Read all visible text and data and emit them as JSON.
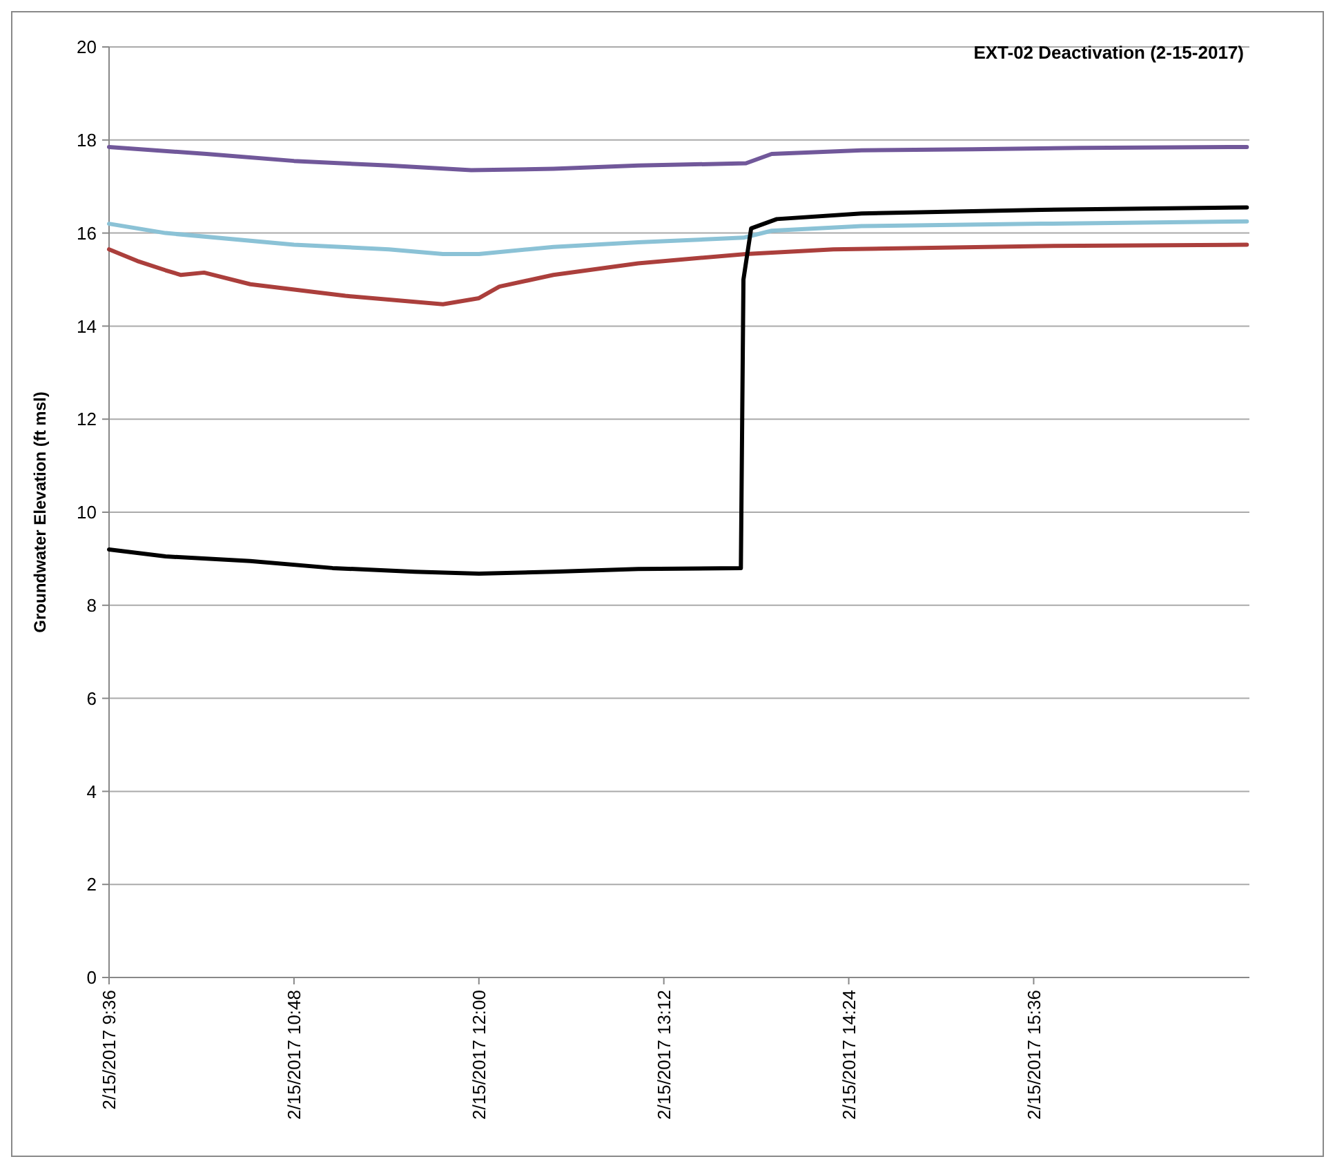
{
  "chart_data": {
    "type": "line",
    "title": "EXT-02 Deactivation (2-15-2017)",
    "ylabel": "Groundwater Elevation (ft msl)",
    "xlim": [
      "2017-02-15T09:36",
      "2017-02-15T17:00"
    ],
    "xticks": [
      {
        "value": "2017-02-15T09:36",
        "label": "2/15/2017 9:36"
      },
      {
        "value": "2017-02-15T10:48",
        "label": "2/15/2017 10:48"
      },
      {
        "value": "2017-02-15T12:00",
        "label": "2/15/2017 12:00"
      },
      {
        "value": "2017-02-15T13:12",
        "label": "2/15/2017 13:12"
      },
      {
        "value": "2017-02-15T14:24",
        "label": "2/15/2017 14:24"
      },
      {
        "value": "2017-02-15T15:36",
        "label": "2/15/2017 15:36"
      }
    ],
    "ylim": [
      0,
      20
    ],
    "yticks": [
      0,
      2,
      4,
      6,
      8,
      10,
      12,
      14,
      16,
      18,
      20
    ],
    "grid": "y",
    "marker": "none",
    "line_style": "solid",
    "series": [
      {
        "color": "#71589a",
        "x": [
          "2017-02-15T09:36",
          "2017-02-15T10:14",
          "2017-02-15T10:48",
          "2017-02-15T11:25",
          "2017-02-15T11:57",
          "2017-02-15T12:29",
          "2017-02-15T13:02",
          "2017-02-15T13:44",
          "2017-02-15T13:54",
          "2017-02-15T14:29",
          "2017-02-15T15:12",
          "2017-02-15T15:54",
          "2017-02-15T16:59"
        ],
        "values": [
          17.85,
          17.7,
          17.55,
          17.45,
          17.35,
          17.38,
          17.45,
          17.5,
          17.7,
          17.78,
          17.8,
          17.83,
          17.85
        ]
      },
      {
        "color": "#8bc2d6",
        "x": [
          "2017-02-15T09:36",
          "2017-02-15T09:58",
          "2017-02-15T10:48",
          "2017-02-15T11:25",
          "2017-02-15T11:46",
          "2017-02-15T12:00",
          "2017-02-15T12:29",
          "2017-02-15T13:02",
          "2017-02-15T13:43",
          "2017-02-15T13:54",
          "2017-02-15T14:29",
          "2017-02-15T15:39",
          "2017-02-15T16:59"
        ],
        "values": [
          16.2,
          16.0,
          15.75,
          15.65,
          15.55,
          15.55,
          15.7,
          15.8,
          15.9,
          16.05,
          16.15,
          16.2,
          16.25
        ]
      },
      {
        "color": "#ab3f3c",
        "x": [
          "2017-02-15T09:36",
          "2017-02-15T09:47",
          "2017-02-15T09:58",
          "2017-02-15T10:04",
          "2017-02-15T10:13",
          "2017-02-15T10:31",
          "2017-02-15T11:08",
          "2017-02-15T11:46",
          "2017-02-15T12:00",
          "2017-02-15T12:08",
          "2017-02-15T12:29",
          "2017-02-15T13:02",
          "2017-02-15T13:44",
          "2017-02-15T14:18",
          "2017-02-15T15:39",
          "2017-02-15T16:59"
        ],
        "values": [
          15.65,
          15.4,
          15.2,
          15.1,
          15.15,
          14.9,
          14.65,
          14.47,
          14.6,
          14.85,
          15.1,
          15.35,
          15.55,
          15.65,
          15.72,
          15.75
        ]
      },
      {
        "color": "#000000",
        "x": [
          "2017-02-15T09:36",
          "2017-02-15T09:58",
          "2017-02-15T10:31",
          "2017-02-15T11:03",
          "2017-02-15T11:35",
          "2017-02-15T12:00",
          "2017-02-15T12:29",
          "2017-02-15T13:02",
          "2017-02-15T13:42",
          "2017-02-15T13:43",
          "2017-02-15T13:46",
          "2017-02-15T13:56",
          "2017-02-15T14:29",
          "2017-02-15T15:39",
          "2017-02-15T16:59"
        ],
        "values": [
          9.2,
          9.05,
          8.95,
          8.8,
          8.72,
          8.68,
          8.72,
          8.78,
          8.8,
          15.0,
          16.1,
          16.3,
          16.42,
          16.5,
          16.55
        ]
      }
    ]
  }
}
